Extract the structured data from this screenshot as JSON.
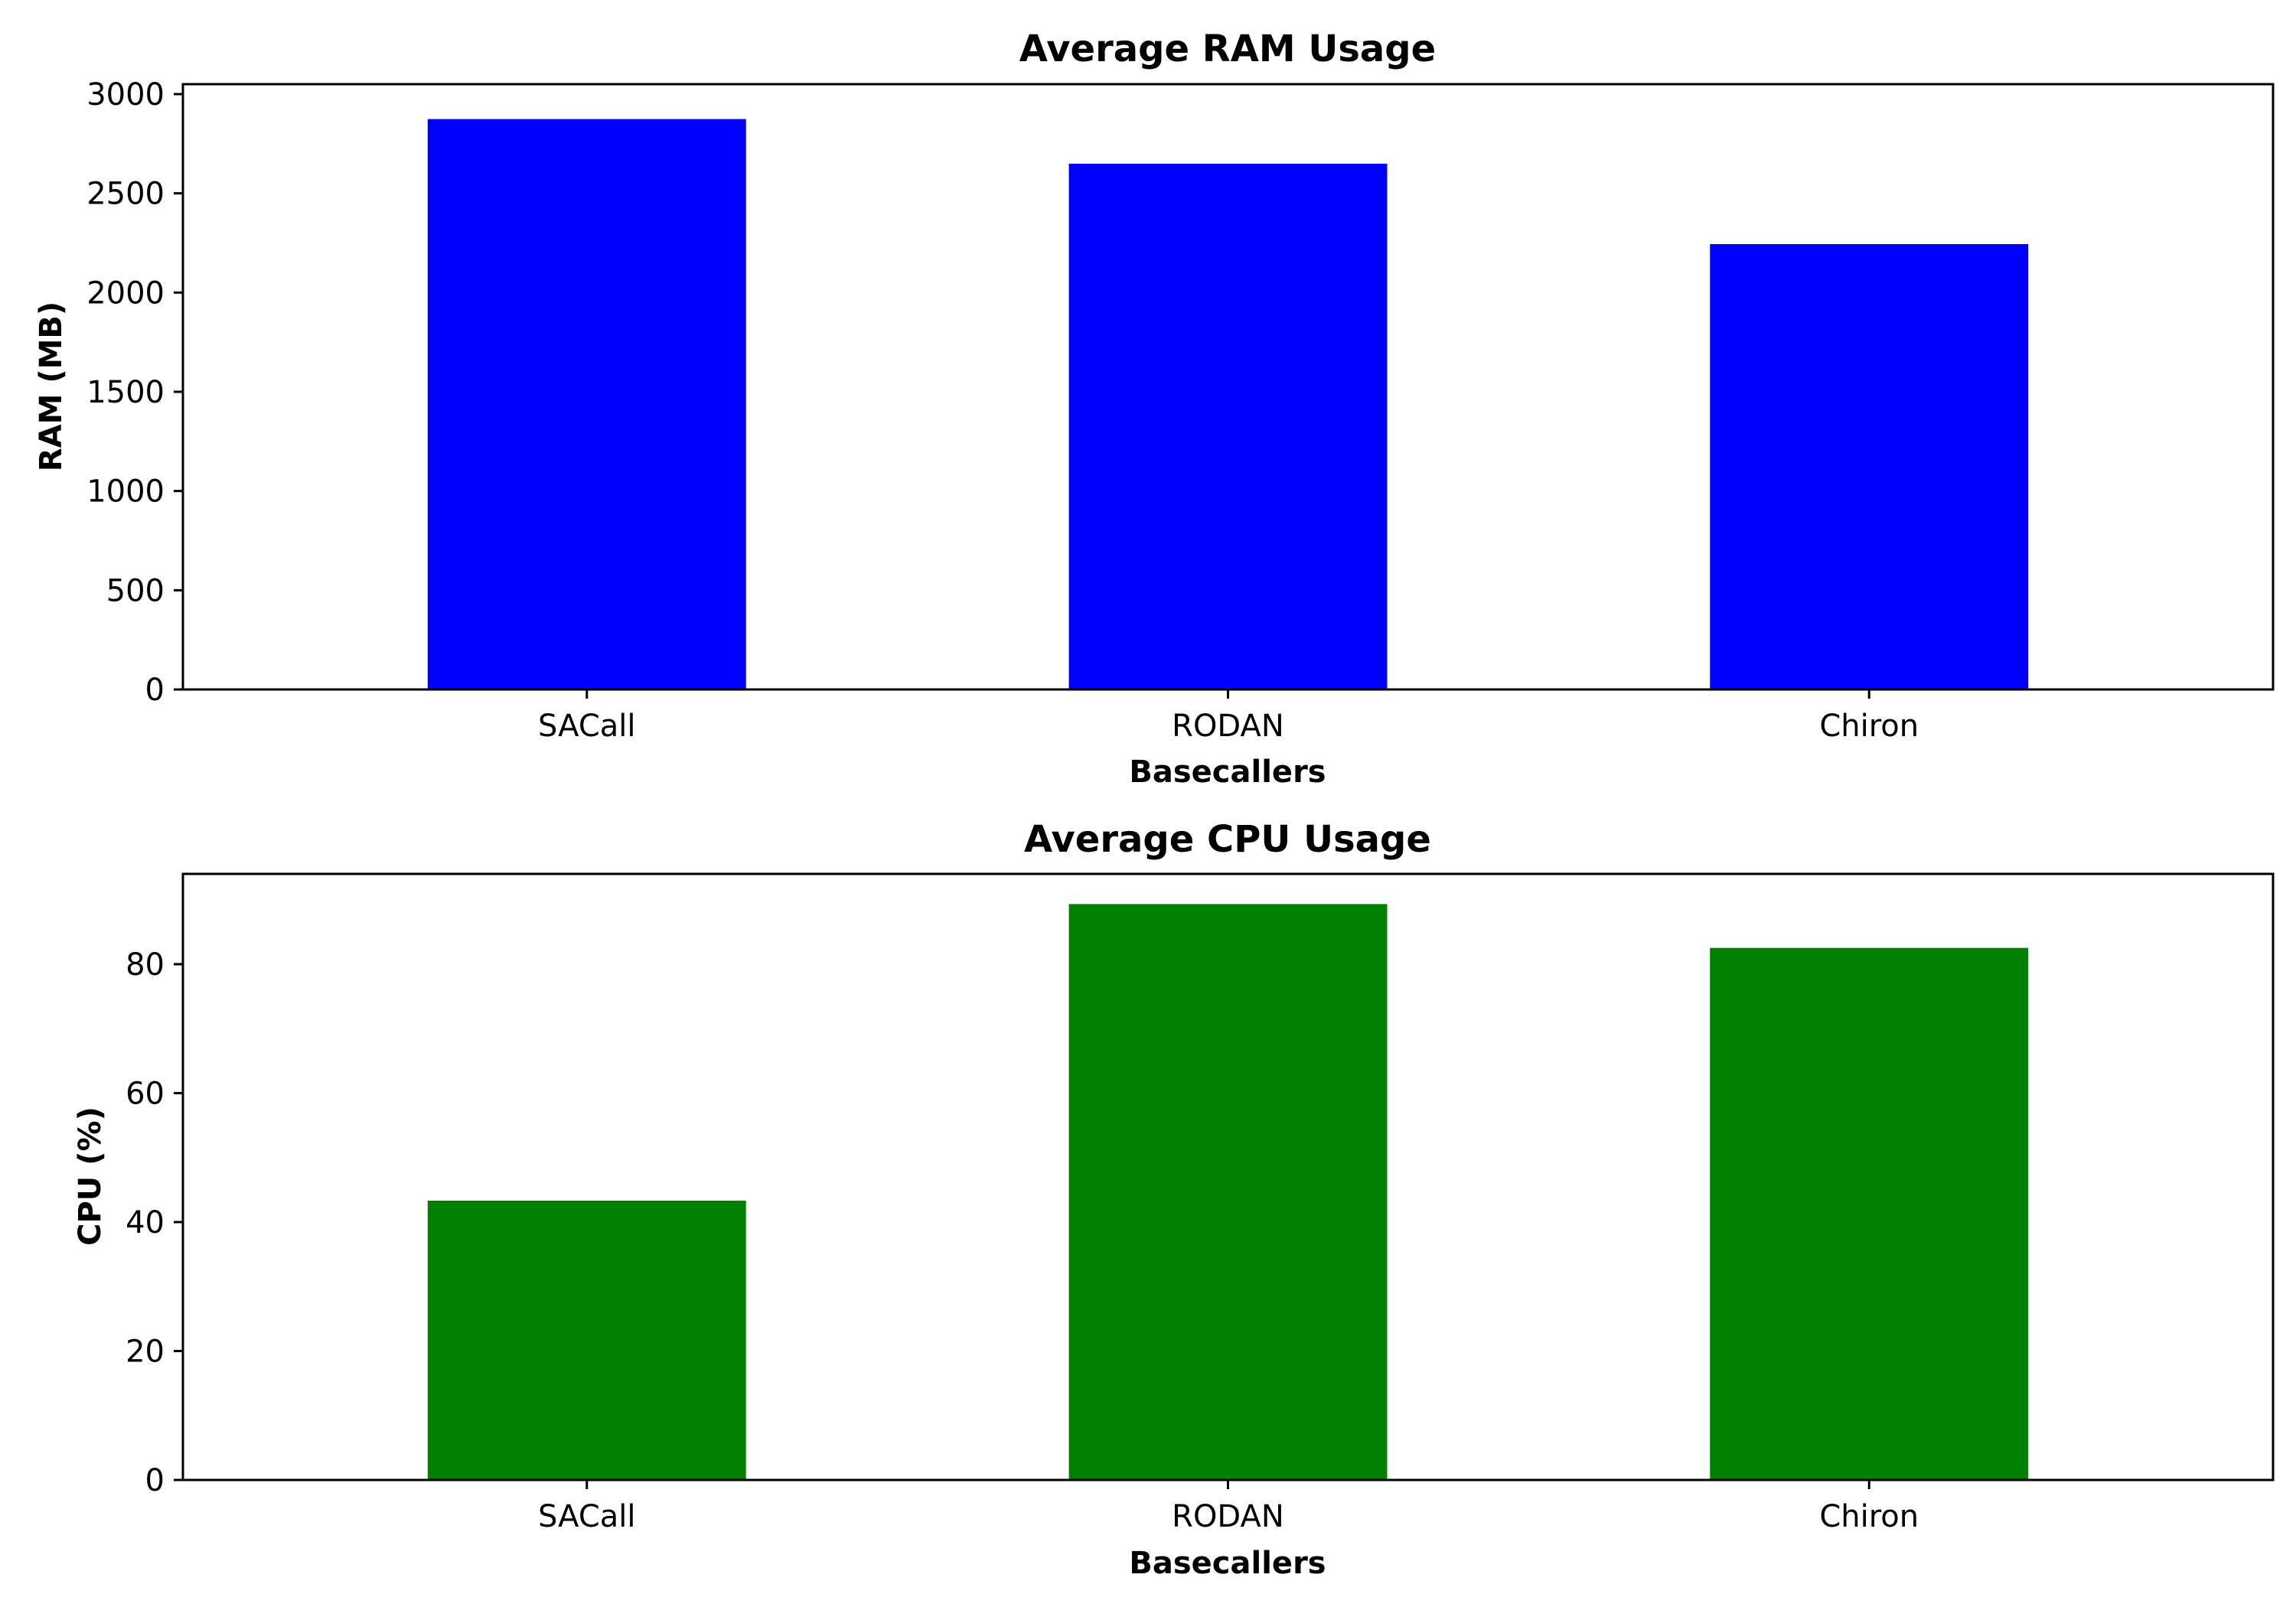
{
  "chart_data": [
    {
      "type": "bar",
      "title": "Average RAM Usage",
      "xlabel": "Basecallers",
      "ylabel": "RAM (MB)",
      "categories": [
        "SACall",
        "RODAN",
        "Chiron"
      ],
      "values": [
        2880,
        2655,
        2250
      ],
      "ylim": [
        0,
        3050
      ],
      "yticks": [
        0,
        500,
        1000,
        1500,
        2000,
        2500,
        3000
      ],
      "bar_color": "#0000ff",
      "grid": false
    },
    {
      "type": "bar",
      "title": "Average CPU Usage",
      "xlabel": "Basecallers",
      "ylabel": "CPU (%)",
      "categories": [
        "SACall",
        "RODAN",
        "Chiron"
      ],
      "values": [
        43.5,
        89.5,
        82.7
      ],
      "ylim": [
        0,
        94
      ],
      "yticks": [
        0,
        20,
        40,
        60,
        80
      ],
      "bar_color": "#008000",
      "grid": false
    }
  ]
}
